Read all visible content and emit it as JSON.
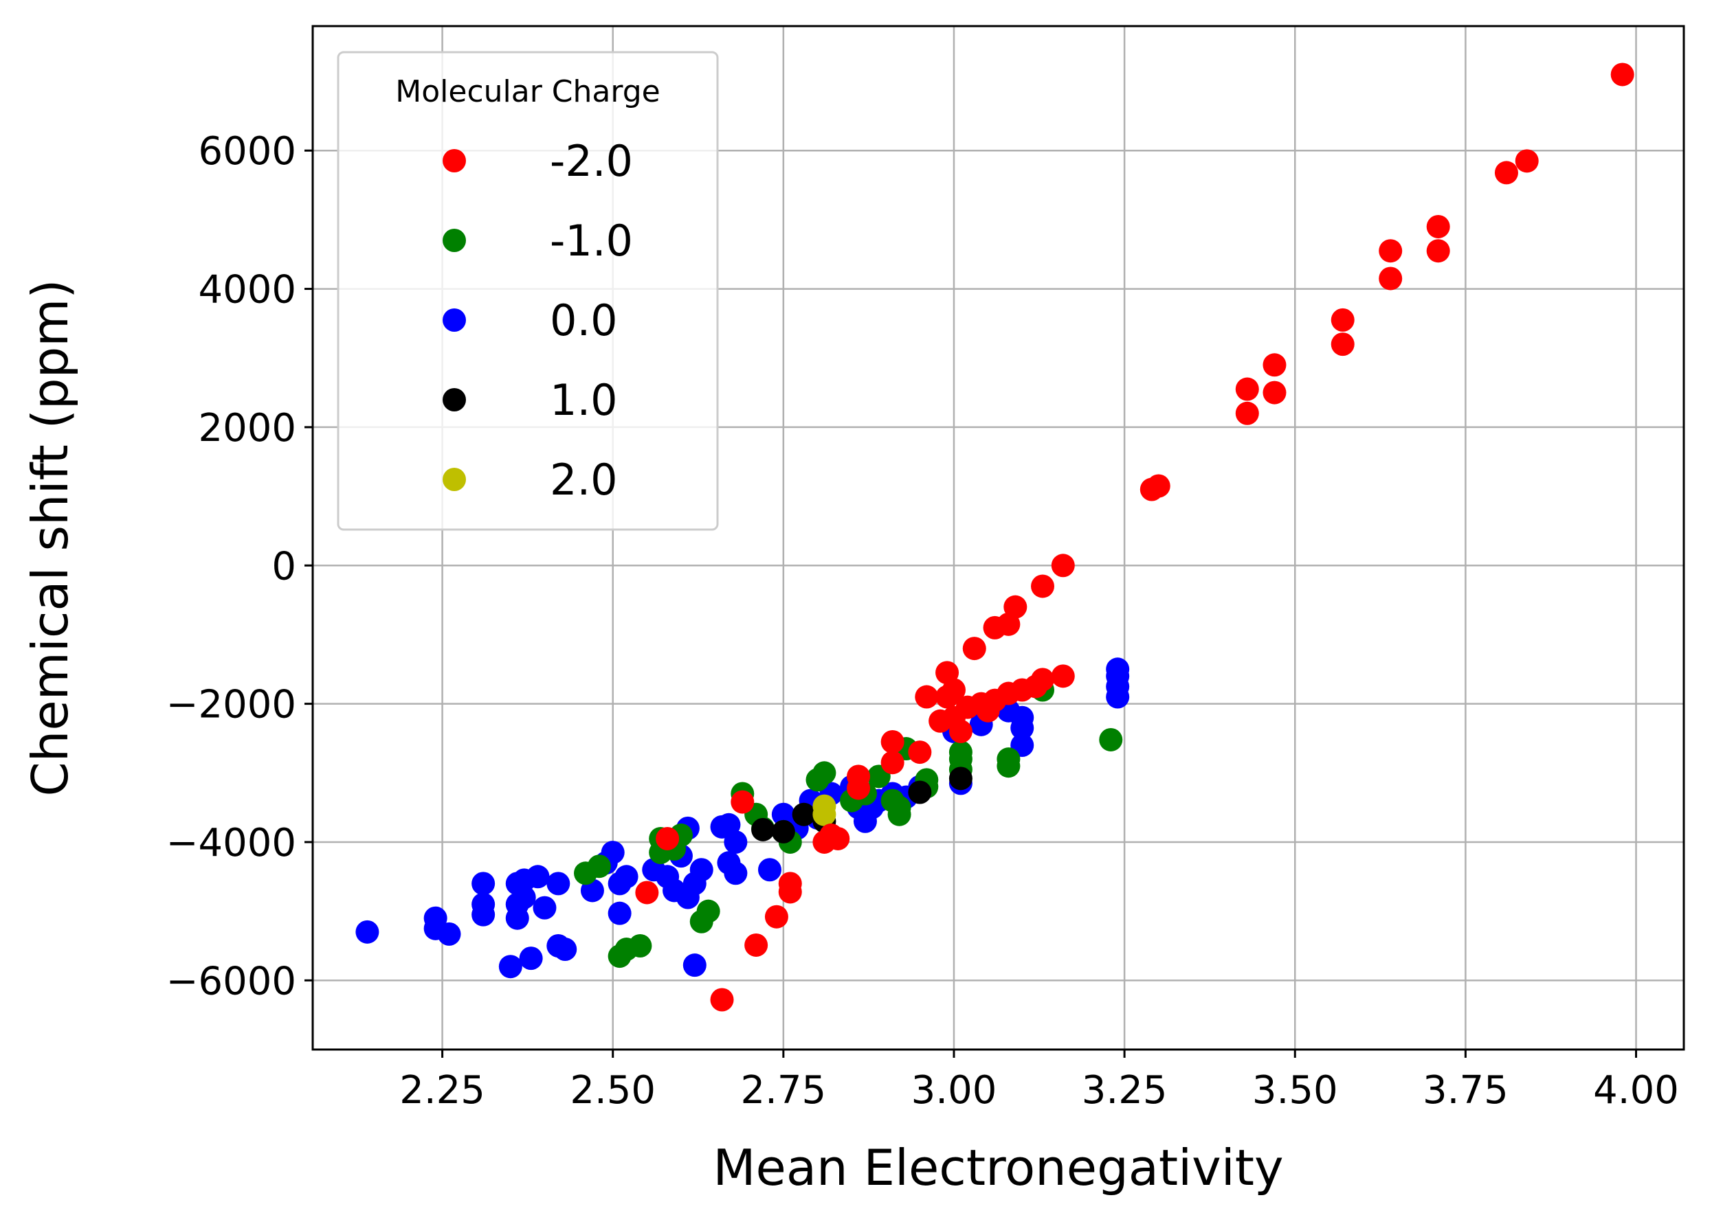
{
  "chart_data": {
    "type": "scatter",
    "xlabel": "Mean Electronegativity",
    "ylabel": "Chemical shift (ppm)",
    "xlim": [
      2.06,
      4.07
    ],
    "ylim": [
      -7000,
      7800
    ],
    "x_ticks": [
      2.25,
      2.5,
      2.75,
      3.0,
      3.25,
      3.5,
      3.75,
      4.0
    ],
    "x_tick_labels": [
      "2.25",
      "2.50",
      "2.75",
      "3.00",
      "3.25",
      "3.50",
      "3.75",
      "4.00"
    ],
    "y_ticks": [
      -6000,
      -4000,
      -2000,
      0,
      2000,
      4000,
      6000
    ],
    "y_tick_labels": [
      "−6000",
      "−4000",
      "−2000",
      "0",
      "2000",
      "4000",
      "6000"
    ],
    "grid": true,
    "legend": {
      "title": "Molecular Charge",
      "placement": "top-left"
    },
    "series": [
      {
        "name": "0.0",
        "color": "#0000ff",
        "points": [
          [
            2.14,
            -5300
          ],
          [
            2.24,
            -5100
          ],
          [
            2.24,
            -5250
          ],
          [
            2.26,
            -5330
          ],
          [
            2.31,
            -4600
          ],
          [
            2.31,
            -4900
          ],
          [
            2.31,
            -5050
          ],
          [
            2.35,
            -5800
          ],
          [
            2.36,
            -4600
          ],
          [
            2.36,
            -4900
          ],
          [
            2.36,
            -5100
          ],
          [
            2.37,
            -4550
          ],
          [
            2.37,
            -4800
          ],
          [
            2.38,
            -5680
          ],
          [
            2.39,
            -4500
          ],
          [
            2.4,
            -4950
          ],
          [
            2.42,
            -4600
          ],
          [
            2.42,
            -5500
          ],
          [
            2.43,
            -5550
          ],
          [
            2.47,
            -4700
          ],
          [
            2.49,
            -4300
          ],
          [
            2.5,
            -4150
          ],
          [
            2.51,
            -4600
          ],
          [
            2.51,
            -5030
          ],
          [
            2.52,
            -4500
          ],
          [
            2.56,
            -4400
          ],
          [
            2.58,
            -4500
          ],
          [
            2.59,
            -4700
          ],
          [
            2.6,
            -4200
          ],
          [
            2.61,
            -3800
          ],
          [
            2.61,
            -4800
          ],
          [
            2.62,
            -5780
          ],
          [
            2.62,
            -4600
          ],
          [
            2.63,
            -4400
          ],
          [
            2.66,
            -3780
          ],
          [
            2.67,
            -3750
          ],
          [
            2.67,
            -4300
          ],
          [
            2.68,
            -4450
          ],
          [
            2.68,
            -4000
          ],
          [
            2.73,
            -4400
          ],
          [
            2.75,
            -3600
          ],
          [
            2.77,
            -3800
          ],
          [
            2.79,
            -3400
          ],
          [
            2.8,
            -3650
          ],
          [
            2.82,
            -3300
          ],
          [
            2.85,
            -3200
          ],
          [
            2.86,
            -3500
          ],
          [
            2.87,
            -3700
          ],
          [
            2.88,
            -3500
          ],
          [
            2.89,
            -3400
          ],
          [
            2.91,
            -3300
          ],
          [
            2.93,
            -3350
          ],
          [
            2.95,
            -3200
          ],
          [
            3.01,
            -3150
          ],
          [
            3.0,
            -2400
          ],
          [
            3.04,
            -2300
          ],
          [
            3.08,
            -2100
          ],
          [
            3.1,
            -2200
          ],
          [
            3.1,
            -2350
          ],
          [
            3.1,
            -2600
          ],
          [
            3.24,
            -1500
          ],
          [
            3.24,
            -1600
          ],
          [
            3.24,
            -1750
          ],
          [
            3.24,
            -1900
          ]
        ]
      },
      {
        "name": "-1.0",
        "color": "#008000",
        "points": [
          [
            2.46,
            -4450
          ],
          [
            2.48,
            -4350
          ],
          [
            2.51,
            -5650
          ],
          [
            2.52,
            -5550
          ],
          [
            2.54,
            -5500
          ],
          [
            2.57,
            -3950
          ],
          [
            2.57,
            -4150
          ],
          [
            2.58,
            -4050
          ],
          [
            2.59,
            -4100
          ],
          [
            2.6,
            -3900
          ],
          [
            2.63,
            -5150
          ],
          [
            2.64,
            -5000
          ],
          [
            2.69,
            -3300
          ],
          [
            2.71,
            -3600
          ],
          [
            2.72,
            -3800
          ],
          [
            2.75,
            -3850
          ],
          [
            2.76,
            -4000
          ],
          [
            2.8,
            -3100
          ],
          [
            2.81,
            -3000
          ],
          [
            2.85,
            -3400
          ],
          [
            2.87,
            -3300
          ],
          [
            2.89,
            -3050
          ],
          [
            2.91,
            -3400
          ],
          [
            2.92,
            -3500
          ],
          [
            2.92,
            -3600
          ],
          [
            2.93,
            -2650
          ],
          [
            2.96,
            -3100
          ],
          [
            2.96,
            -3200
          ],
          [
            3.01,
            -2700
          ],
          [
            3.01,
            -2800
          ],
          [
            3.01,
            -2950
          ],
          [
            3.08,
            -2800
          ],
          [
            3.08,
            -2900
          ],
          [
            3.13,
            -1800
          ],
          [
            3.23,
            -2520
          ]
        ]
      },
      {
        "name": "1.0",
        "color": "#000000",
        "points": [
          [
            2.72,
            -3820
          ],
          [
            2.75,
            -3850
          ],
          [
            2.78,
            -3600
          ],
          [
            2.81,
            -3700
          ],
          [
            2.95,
            -3280
          ],
          [
            3.01,
            -3080
          ]
        ]
      },
      {
        "name": "2.0",
        "color": "#bfbf00",
        "points": [
          [
            2.81,
            -3480
          ],
          [
            2.81,
            -3600
          ]
        ]
      },
      {
        "name": "-2.0",
        "color": "#ff0000",
        "points": [
          [
            2.55,
            -4730
          ],
          [
            2.58,
            -3950
          ],
          [
            2.66,
            -6280
          ],
          [
            2.69,
            -3420
          ],
          [
            2.71,
            -5490
          ],
          [
            2.74,
            -5080
          ],
          [
            2.76,
            -4600
          ],
          [
            2.76,
            -4720
          ],
          [
            2.81,
            -4000
          ],
          [
            2.82,
            -3900
          ],
          [
            2.83,
            -3950
          ],
          [
            2.86,
            -3050
          ],
          [
            2.86,
            -3220
          ],
          [
            2.91,
            -2550
          ],
          [
            2.91,
            -2850
          ],
          [
            2.95,
            -2700
          ],
          [
            2.96,
            -1900
          ],
          [
            2.98,
            -2250
          ],
          [
            2.99,
            -1550
          ],
          [
            2.99,
            -1900
          ],
          [
            3.0,
            -1800
          ],
          [
            3.0,
            -2200
          ],
          [
            3.01,
            -2400
          ],
          [
            3.02,
            -2050
          ],
          [
            3.03,
            -1200
          ],
          [
            3.04,
            -2000
          ],
          [
            3.05,
            -2100
          ],
          [
            3.06,
            -1950
          ],
          [
            3.06,
            -900
          ],
          [
            3.08,
            -850
          ],
          [
            3.08,
            -1850
          ],
          [
            3.09,
            -600
          ],
          [
            3.1,
            -1800
          ],
          [
            3.12,
            -1750
          ],
          [
            3.13,
            -300
          ],
          [
            3.13,
            -1650
          ],
          [
            3.16,
            0
          ],
          [
            3.16,
            -1600
          ],
          [
            3.29,
            1100
          ],
          [
            3.3,
            1150
          ],
          [
            3.43,
            2550
          ],
          [
            3.43,
            2200
          ],
          [
            3.47,
            2900
          ],
          [
            3.47,
            2500
          ],
          [
            3.57,
            3550
          ],
          [
            3.57,
            3200
          ],
          [
            3.64,
            4550
          ],
          [
            3.64,
            4150
          ],
          [
            3.71,
            4900
          ],
          [
            3.71,
            4550
          ],
          [
            3.81,
            5680
          ],
          [
            3.84,
            5850
          ],
          [
            3.98,
            7100
          ]
        ]
      }
    ],
    "legend_order": [
      "-2.0",
      "-1.0",
      "0.0",
      "1.0",
      "2.0"
    ]
  }
}
